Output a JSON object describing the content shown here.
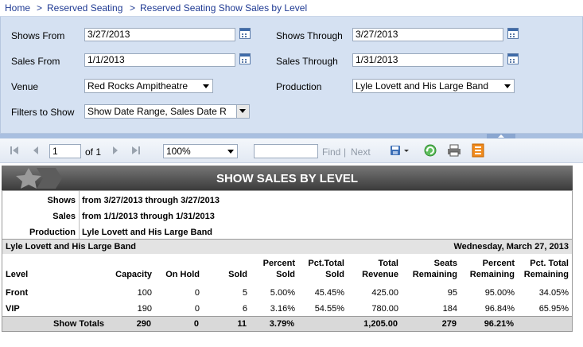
{
  "breadcrumb": {
    "items": [
      "Home",
      "Reserved Seating",
      "Reserved Seating Show Sales by Level"
    ],
    "separator": ">"
  },
  "params": {
    "shows_from": {
      "label": "Shows From",
      "value": "3/27/2013"
    },
    "shows_through": {
      "label": "Shows Through",
      "value": "3/27/2013"
    },
    "sales_from": {
      "label": "Sales From",
      "value": "1/1/2013"
    },
    "sales_through": {
      "label": "Sales Through",
      "value": "1/31/2013"
    },
    "venue": {
      "label": "Venue",
      "value": "Red Rocks Ampitheatre"
    },
    "production": {
      "label": "Production",
      "value": "Lyle Lovett and His Large Band"
    },
    "filters": {
      "label": "Filters to Show",
      "value": "Show Date Range, Sales Date R"
    }
  },
  "toolbar": {
    "page_value": "1",
    "page_of": "of 1",
    "zoom": "100%",
    "find_value": "",
    "find_label": "Find",
    "divider": "|",
    "next_label": "Next"
  },
  "report": {
    "title": "SHOW SALES BY LEVEL",
    "info": {
      "shows_label": "Shows",
      "shows_value": "from 3/27/2013 through 3/27/2013",
      "sales_label": "Sales",
      "sales_value": "from 1/1/2013 through 1/31/2013",
      "production_label": "Production",
      "production_value": "Lyle Lovett and His Large Band"
    },
    "production_bar": {
      "name": "Lyle Lovett and His Large Band",
      "date": "Wednesday, March 27, 2013"
    },
    "columns": {
      "level": "Level",
      "capacity": "Capacity",
      "on_hold": "On Hold",
      "sold": "Sold",
      "percent_sold_1": "Percent",
      "percent_sold_2": "Sold",
      "pct_total_sold_1": "Pct.Total",
      "pct_total_sold_2": "Sold",
      "total_revenue_1": "Total",
      "total_revenue_2": "Revenue",
      "seats_remaining_1": "Seats",
      "seats_remaining_2": "Remaining",
      "percent_remaining_1": "Percent",
      "percent_remaining_2": "Remaining",
      "pct_total_remaining_1": "Pct. Total",
      "pct_total_remaining_2": "Remaining"
    },
    "rows": [
      {
        "level": "Front",
        "capacity": "100",
        "on_hold": "0",
        "sold": "5",
        "percent_sold": "5.00%",
        "pct_total_sold": "45.45%",
        "total_revenue": "425.00",
        "seats_remaining": "95",
        "percent_remaining": "95.00%",
        "pct_total_remaining": "34.05%"
      },
      {
        "level": "VIP",
        "capacity": "190",
        "on_hold": "0",
        "sold": "6",
        "percent_sold": "3.16%",
        "pct_total_sold": "54.55%",
        "total_revenue": "780.00",
        "seats_remaining": "184",
        "percent_remaining": "96.84%",
        "pct_total_remaining": "65.95%"
      }
    ],
    "totals": {
      "label": "Show Totals",
      "capacity": "290",
      "on_hold": "0",
      "sold": "11",
      "percent_sold": "3.79%",
      "total_revenue": "1,205.00",
      "seats_remaining": "279",
      "percent_remaining": "96.21%"
    }
  },
  "colors": {
    "param_bg": "#d5e1f2",
    "header_dark": "#3b3b3b",
    "link": "#1f3a93"
  }
}
